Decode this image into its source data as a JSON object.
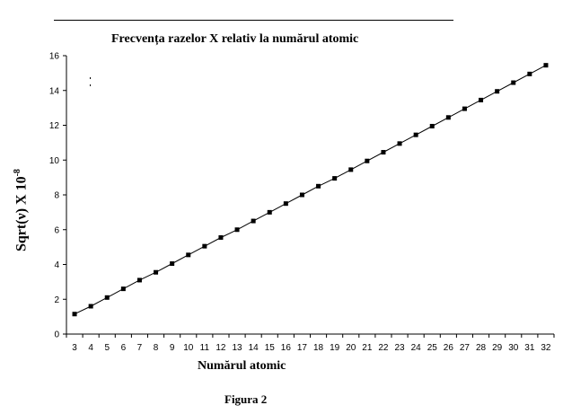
{
  "chart_data": {
    "type": "line",
    "title": "Frecvența razelor X relativ la numărul atomic",
    "xlabel": "Numărul atomic",
    "ylabel": "Sqrt(ν) X 10",
    "ylabel_exponent": "-8",
    "caption": "Figura 2",
    "x": [
      3,
      4,
      5,
      6,
      7,
      8,
      9,
      10,
      11,
      12,
      13,
      14,
      15,
      16,
      17,
      18,
      19,
      20,
      21,
      22,
      23,
      24,
      25,
      26,
      27,
      28,
      29,
      30,
      31,
      32
    ],
    "series": [
      {
        "values": [
          1.15,
          1.6,
          2.1,
          2.6,
          3.1,
          3.55,
          4.05,
          4.55,
          5.05,
          5.55,
          6.0,
          6.5,
          7.0,
          7.5,
          8.0,
          8.5,
          8.95,
          9.45,
          9.95,
          10.45,
          10.95,
          11.45,
          11.95,
          12.45,
          12.95,
          13.45,
          13.95,
          14.45,
          14.95,
          15.45
        ],
        "color": "#000000",
        "marker": "square"
      }
    ],
    "ylim": [
      0,
      16
    ],
    "yticks": [
      0,
      2,
      4,
      6,
      8,
      10,
      12,
      14,
      16
    ],
    "grid": false,
    "legend": "none"
  }
}
